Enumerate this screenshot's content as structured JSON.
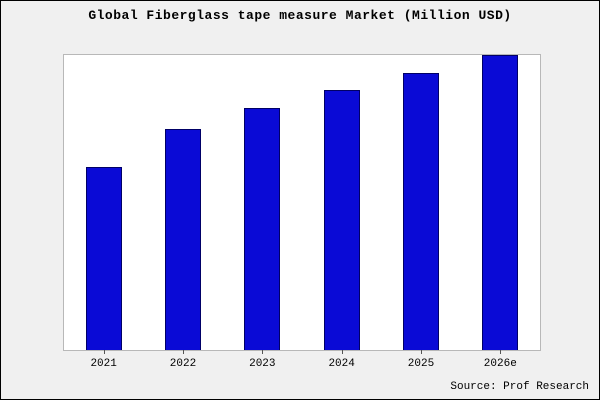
{
  "title": "Global Fiberglass tape measure Market (Million USD)",
  "source": "Source: Prof Research",
  "colors": {
    "bar_fill": "#0a0ad6",
    "bar_border": "#000066",
    "outer_background": "#f0f0f0",
    "plot_background": "#ffffff",
    "frame_border": "#000000"
  },
  "chart_data": {
    "type": "bar",
    "title": "Global Fiberglass tape measure Market (Million USD)",
    "categories": [
      "2021",
      "2022",
      "2023",
      "2024",
      "2025",
      "2026e"
    ],
    "values": [
      62,
      75,
      82,
      88,
      94,
      100
    ],
    "xlabel": "",
    "ylabel": "",
    "ylim": [
      0,
      100
    ],
    "grid": false,
    "legend": false,
    "y_axis_labels_shown": false,
    "annotation": "Source: Prof Research"
  }
}
